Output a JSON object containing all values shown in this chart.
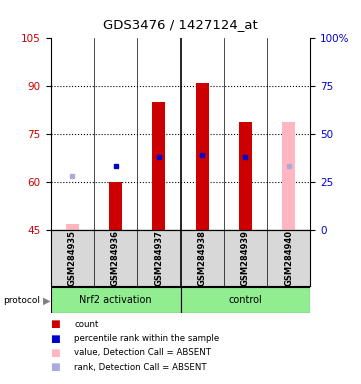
{
  "title": "GDS3476 / 1427124_at",
  "samples": [
    "GSM284935",
    "GSM284936",
    "GSM284937",
    "GSM284938",
    "GSM284939",
    "GSM284940"
  ],
  "y_min": 45,
  "y_max": 105,
  "y_ticks_left": [
    45,
    60,
    75,
    90,
    105
  ],
  "y_ticks_right_positions": [
    45,
    60,
    75,
    90,
    105
  ],
  "y_ticks_right_labels": [
    "0",
    "25",
    "50",
    "75",
    "100%"
  ],
  "bar_bottom": 45,
  "red_bar_tops": [
    null,
    60,
    85,
    91,
    79,
    null
  ],
  "pink_bar_tops": [
    47,
    null,
    null,
    null,
    null,
    79
  ],
  "blue_sq_y": [
    null,
    65,
    68,
    68.5,
    68,
    null
  ],
  "lightblue_sq_y": [
    62,
    null,
    null,
    null,
    null,
    65
  ],
  "group1_label": "Nrf2 activation",
  "group2_label": "control",
  "group1_color": "#90EE90",
  "group2_color": "#90EE90",
  "bar_width": 0.3,
  "tick_label_color_left": "#CC0000",
  "tick_label_color_right": "#0000CC",
  "legend_colors": [
    "#CC0000",
    "#0000CC",
    "#FFB6C1",
    "#AAAADD"
  ],
  "legend_labels": [
    "count",
    "percentile rank within the sample",
    "value, Detection Call = ABSENT",
    "rank, Detection Call = ABSENT"
  ]
}
